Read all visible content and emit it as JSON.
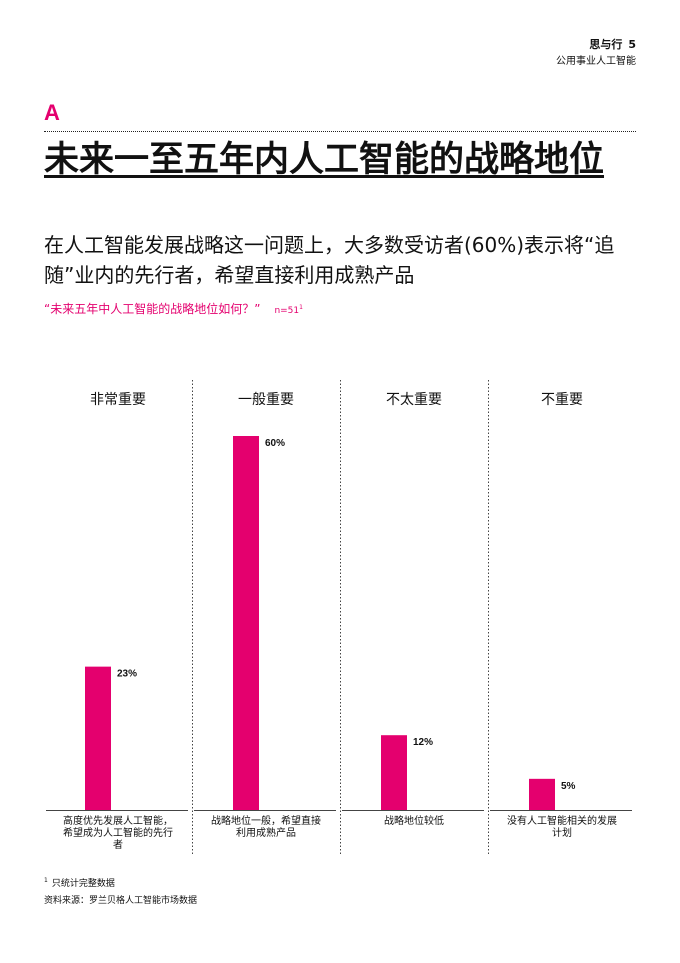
{
  "header": {
    "brand": "思与行",
    "page": "5",
    "subtitle": "公用事业人工智能"
  },
  "section_letter": "A",
  "title": "未来一至五年内人工智能的战略地位",
  "subtitle": "在人工智能发展战略这一问题上，大多数受访者(60%)表示将“追随”业内的先行者，希望直接利用成熟产品",
  "question": {
    "text": "“未来五年中人工智能的战略地位如何？”",
    "n_label": "n=51",
    "n_sup": "1"
  },
  "footnote": {
    "marker": "1",
    "text": "只统计完整数据"
  },
  "source": "资料来源：罗兰贝格人工智能市场数据",
  "colors": {
    "accent": "#e4006e"
  },
  "chart_data": {
    "type": "bar",
    "categories": [
      "非常重要",
      "一般重要",
      "不太重要",
      "不重要"
    ],
    "values": [
      23,
      60,
      12,
      5
    ],
    "value_labels": [
      "23%",
      "60%",
      "12%",
      "5%"
    ],
    "descriptions": [
      "高度优先发展人工智能，希望成为人工智能的先行者",
      "战略地位一般，希望直接利用成熟产品",
      "战略地位较低",
      "没有人工智能相关的发展计划"
    ],
    "ylim": [
      0,
      60
    ],
    "color": "#e4006e"
  }
}
